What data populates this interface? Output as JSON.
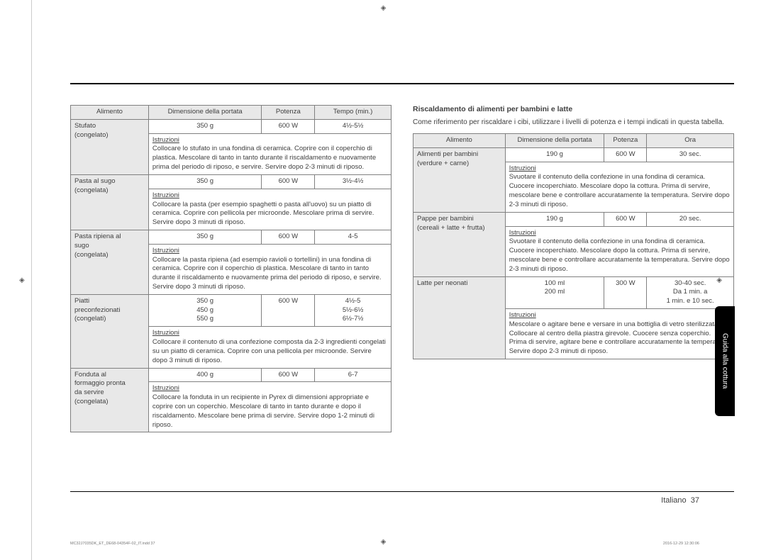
{
  "colors": {
    "text": "#404040",
    "header_bg": "#e8e8e8",
    "border": "#808080",
    "rule": "#000000",
    "sidetab_bg": "#000000",
    "sidetab_text": "#ffffff",
    "background": "#ffffff"
  },
  "typography": {
    "body_pt": 9.5,
    "heading_pt": 10.5
  },
  "side_tab": "Guida alla cottura",
  "footer": {
    "lang": "Italiano",
    "page": "37"
  },
  "imprint": {
    "left": "MC32J7035DK_ET_DE68-04354F-02_IT.indd   37",
    "right": "2016-12-29   12:30:06"
  },
  "left_table": {
    "headers": [
      "Alimento",
      "Dimensione della portata",
      "Potenza",
      "Tempo (min.)"
    ],
    "col_widths": [
      "110px",
      "160px",
      "75px",
      "108px"
    ],
    "instr_label": "Istruzioni",
    "items": [
      {
        "food_lines": [
          "Stufato",
          "(congelato)"
        ],
        "size": [
          "350 g"
        ],
        "power": "600 W",
        "time": [
          "4½-5½"
        ],
        "instr": "Collocare lo stufato in una fondina di ceramica. Coprire con il coperchio di plastica. Mescolare di tanto in tanto durante il riscaldamento e nuovamente prima del periodo di riposo, e servire. Servire dopo 2-3 minuti di riposo."
      },
      {
        "food_lines": [
          "Pasta al sugo",
          "(congelata)"
        ],
        "size": [
          "350 g"
        ],
        "power": "600 W",
        "time": [
          "3½-4½"
        ],
        "instr": "Collocare la pasta (per esempio spaghetti o pasta all'uovo) su un piatto di ceramica. Coprire con pellicola per microonde. Mescolare prima di servire. Servire dopo 3 minuti di riposo."
      },
      {
        "food_lines": [
          "Pasta ripiena al",
          "sugo",
          "(congelata)"
        ],
        "size": [
          "350 g"
        ],
        "power": "600 W",
        "time": [
          "4-5"
        ],
        "instr": "Collocare la pasta ripiena (ad esempio ravioli o tortellini) in una fondina di ceramica. Coprire con il coperchio di plastica. Mescolare di tanto in tanto durante il riscaldamento e nuovamente prima del periodo di riposo, e servire. Servire dopo 3 minuti di riposo."
      },
      {
        "food_lines": [
          "Piatti",
          "preconfezionati",
          "(congelati)"
        ],
        "size": [
          "350 g",
          "450 g",
          "550 g"
        ],
        "power": "600 W",
        "time": [
          "4½-5",
          "5½-6½",
          "6½-7½"
        ],
        "instr": "Collocare il contenuto di una confezione composta da 2-3 ingredienti congelati su un piatto di ceramica. Coprire con una pellicola per microonde. Servire dopo 3 minuti di riposo."
      },
      {
        "food_lines": [
          "Fonduta al",
          "formaggio pronta",
          "da servire",
          "(congelata)"
        ],
        "size": [
          "400 g"
        ],
        "power": "600 W",
        "time": [
          "6-7"
        ],
        "instr": "Collocare la fonduta in un recipiente in Pyrex di dimensioni appropriate e coprire con un coperchio. Mescolare di tanto in tanto durante e dopo il riscaldamento. Mescolare bene prima di servire. Servire dopo 1-2 minuti di riposo."
      }
    ]
  },
  "right_section": {
    "heading": "Riscaldamento di alimenti per bambini e latte",
    "intro": "Come riferimento per riscaldare i cibi, utilizzare i livelli di potenza e i tempi indicati in questa tabella.",
    "headers": [
      "Alimento",
      "Dimensione della portata",
      "Potenza",
      "Ora"
    ],
    "col_widths": [
      "130px",
      "140px",
      "60px",
      "123px"
    ],
    "instr_label": "Istruzioni",
    "items": [
      {
        "food_lines": [
          "Alimenti per bambini",
          "(verdure + carne)"
        ],
        "size": [
          "190 g"
        ],
        "power": "600 W",
        "time": [
          "30 sec."
        ],
        "instr": "Svuotare il contenuto della confezione in una fondina di ceramica. Cuocere incoperchiato. Mescolare dopo la cottura. Prima di servire, mescolare bene e controllare accuratamente la temperatura. Servire dopo 2-3 minuti di riposo."
      },
      {
        "food_lines": [
          "Pappe per bambini",
          "(cereali + latte + frutta)"
        ],
        "size": [
          "190 g"
        ],
        "power": "600 W",
        "time": [
          "20 sec."
        ],
        "instr": "Svuotare il contenuto della confezione in una fondina di ceramica. Cuocere incoperchiato. Mescolare dopo la cottura. Prima di servire, mescolare bene e controllare accuratamente la temperatura. Servire dopo 2-3 minuti di riposo."
      },
      {
        "food_lines": [
          "Latte per neonati"
        ],
        "size": [
          "100 ml",
          "200 ml"
        ],
        "power": "300 W",
        "time": [
          "30-40 sec.",
          "Da 1 min. a",
          "1 min. e 10 sec."
        ],
        "instr": "Mescolare o agitare bene e versare in una bottiglia di vetro sterilizzata. Collocare al centro della piastra girevole. Cuocere senza coperchio. Prima di servire, agitare bene e controllare accuratamente la temperatura. Servire dopo 2-3 minuti di riposo."
      }
    ]
  }
}
